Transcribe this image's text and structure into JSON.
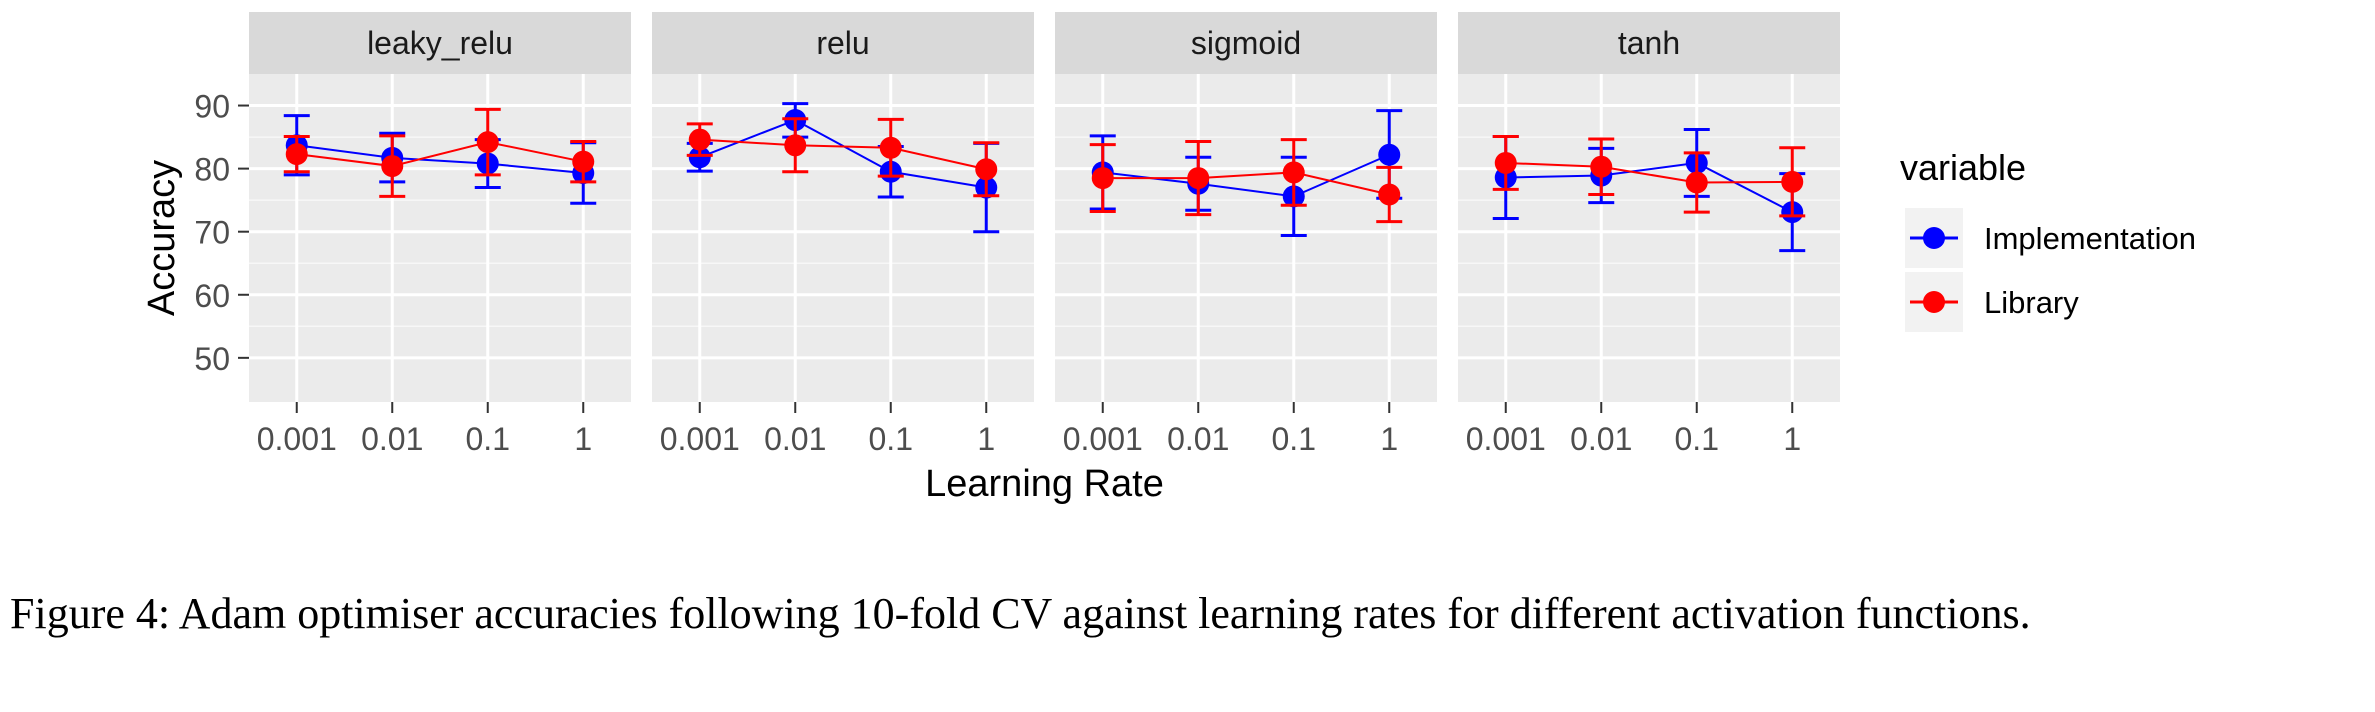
{
  "chart_data": {
    "type": "line",
    "facets": [
      "leaky_relu",
      "relu",
      "sigmoid",
      "tanh"
    ],
    "categories": [
      "0.001",
      "0.01",
      "0.1",
      "1"
    ],
    "xlabel": "Learning Rate",
    "ylabel": "Accuracy",
    "yticks": [
      50,
      60,
      70,
      80,
      90
    ],
    "ylim": [
      43,
      95
    ],
    "grid": true,
    "legend": {
      "title": "variable",
      "placement": "right",
      "entries": [
        "Implementation",
        "Library"
      ]
    },
    "series": [
      {
        "name": "Implementation",
        "color": "#0000ff",
        "panels": {
          "leaky_relu": {
            "mean": [
              83.7,
              81.7,
              80.8,
              79.3
            ],
            "lower": [
              79.0,
              77.9,
              77.0,
              74.5
            ],
            "upper": [
              88.4,
              85.6,
              84.6,
              84.1
            ]
          },
          "relu": {
            "mean": [
              81.8,
              87.7,
              79.5,
              77.0
            ],
            "lower": [
              79.6,
              85.0,
              75.5,
              70.0
            ],
            "upper": [
              84.0,
              90.3,
              83.5,
              84.0
            ]
          },
          "sigmoid": {
            "mean": [
              79.4,
              77.6,
              75.6,
              82.2
            ],
            "lower": [
              73.6,
              73.4,
              69.4,
              75.3
            ],
            "upper": [
              85.2,
              81.8,
              81.8,
              89.2
            ]
          },
          "tanh": {
            "mean": [
              78.6,
              78.9,
              80.9,
              73.1
            ],
            "lower": [
              72.1,
              74.6,
              75.6,
              67.0
            ],
            "upper": [
              85.1,
              83.2,
              86.2,
              79.2
            ]
          }
        }
      },
      {
        "name": "Library",
        "color": "#ff0000",
        "panels": {
          "leaky_relu": {
            "mean": [
              82.3,
              80.4,
              84.2,
              81.1
            ],
            "lower": [
              79.5,
              75.6,
              79.0,
              77.9
            ],
            "upper": [
              85.1,
              85.2,
              89.4,
              84.3
            ]
          },
          "relu": {
            "mean": [
              84.6,
              83.7,
              83.3,
              79.9
            ],
            "lower": [
              82.1,
              79.5,
              78.8,
              75.7
            ],
            "upper": [
              87.1,
              87.9,
              87.8,
              84.1
            ]
          },
          "sigmoid": {
            "mean": [
              78.5,
              78.5,
              79.4,
              75.9
            ],
            "lower": [
              73.2,
              72.7,
              74.2,
              71.6
            ],
            "upper": [
              83.8,
              84.3,
              84.6,
              80.2
            ]
          },
          "tanh": {
            "mean": [
              80.9,
              80.3,
              77.8,
              77.9
            ],
            "lower": [
              76.7,
              75.9,
              73.1,
              72.5
            ],
            "upper": [
              85.1,
              84.7,
              82.5,
              83.3
            ]
          }
        }
      }
    ]
  },
  "caption": "Figure 4: Adam optimiser accuracies following 10-fold CV against learning rates for different activation functions."
}
